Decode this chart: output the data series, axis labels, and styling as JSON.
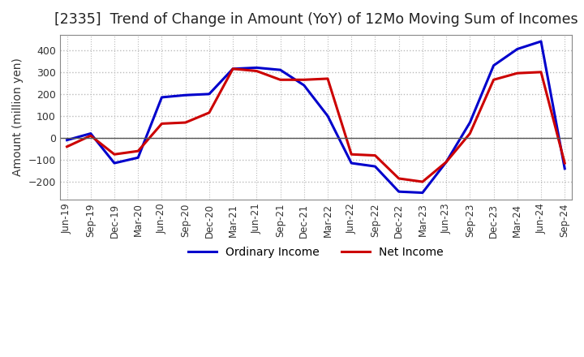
{
  "title": "[2335]  Trend of Change in Amount (YoY) of 12Mo Moving Sum of Incomes",
  "ylabel": "Amount (million yen)",
  "x_labels": [
    "Jun-19",
    "Sep-19",
    "Dec-19",
    "Mar-20",
    "Jun-20",
    "Sep-20",
    "Dec-20",
    "Mar-21",
    "Jun-21",
    "Sep-21",
    "Dec-21",
    "Mar-22",
    "Jun-22",
    "Sep-22",
    "Dec-22",
    "Mar-23",
    "Jun-23",
    "Sep-23",
    "Dec-23",
    "Mar-24",
    "Jun-24",
    "Sep-24"
  ],
  "ordinary_income": [
    -10,
    20,
    -115,
    -90,
    185,
    195,
    200,
    315,
    320,
    310,
    240,
    100,
    -115,
    -130,
    -245,
    -250,
    -110,
    70,
    330,
    405,
    440,
    -140
  ],
  "net_income": [
    -40,
    10,
    -75,
    -60,
    65,
    70,
    115,
    315,
    305,
    265,
    265,
    270,
    -75,
    -80,
    -185,
    -200,
    -110,
    20,
    265,
    295,
    300,
    -115
  ],
  "ordinary_color": "#0000cc",
  "net_color": "#cc0000",
  "ylim": [
    -280,
    470
  ],
  "yticks": [
    -200,
    -100,
    0,
    100,
    200,
    300,
    400
  ],
  "grid_color": "#bbbbbb",
  "background_color": "#ffffff",
  "title_fontsize": 12.5,
  "label_fontsize": 10,
  "legend_fontsize": 10
}
